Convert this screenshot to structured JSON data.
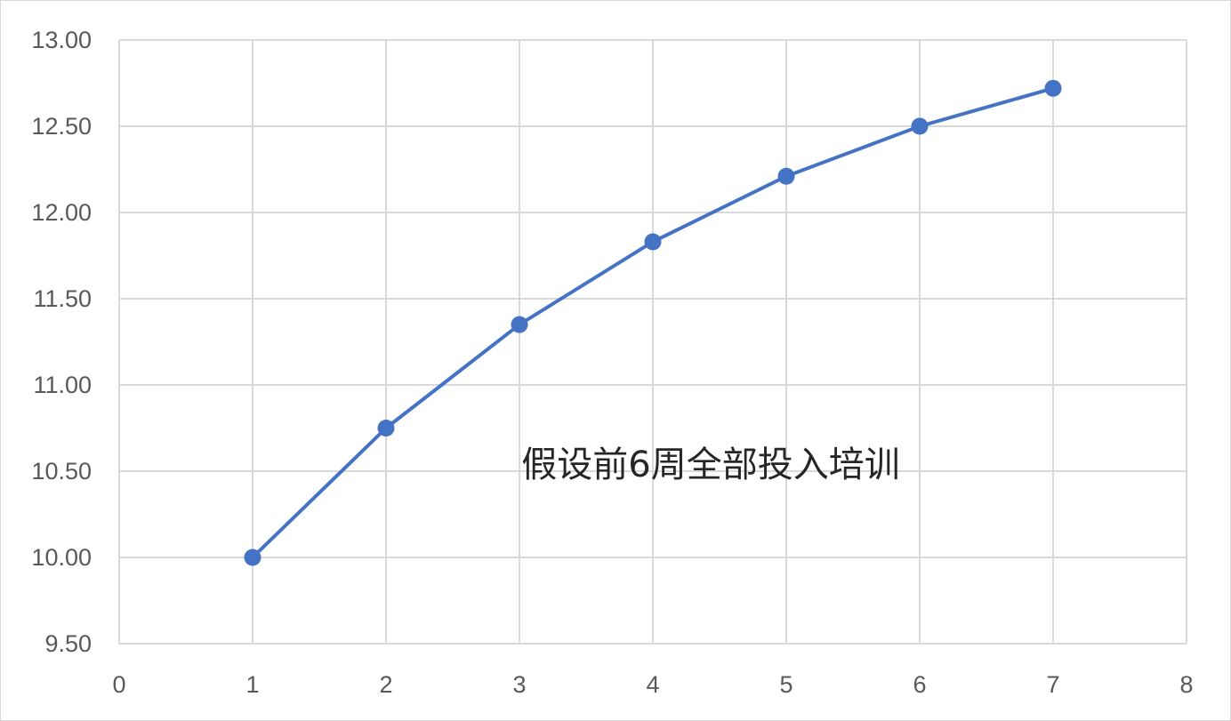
{
  "chart_data": {
    "type": "scatter",
    "mode": "lines+markers",
    "x": [
      1,
      2,
      3,
      4,
      5,
      6,
      7
    ],
    "series": [
      {
        "values": [
          10.0,
          10.75,
          11.35,
          11.83,
          12.21,
          12.5,
          12.72
        ],
        "color": "#4472c4"
      }
    ],
    "xlim": [
      0,
      8
    ],
    "ylim": [
      9.5,
      13.0
    ],
    "x_ticks": [
      0,
      1,
      2,
      3,
      4,
      5,
      6,
      7,
      8
    ],
    "y_ticks": [
      9.5,
      10.0,
      10.5,
      11.0,
      11.5,
      12.0,
      12.5,
      13.0
    ],
    "x_tick_labels": [
      "0",
      "1",
      "2",
      "3",
      "4",
      "5",
      "6",
      "7",
      "8"
    ],
    "y_tick_labels": [
      "9.50",
      "10.00",
      "10.50",
      "11.00",
      "11.50",
      "12.00",
      "12.50",
      "13.00"
    ],
    "annotation": "假设前6周全部投入培训",
    "grid": true,
    "legend": "none",
    "gridline_color": "#d9d9d9",
    "tick_label_color": "#595959"
  }
}
